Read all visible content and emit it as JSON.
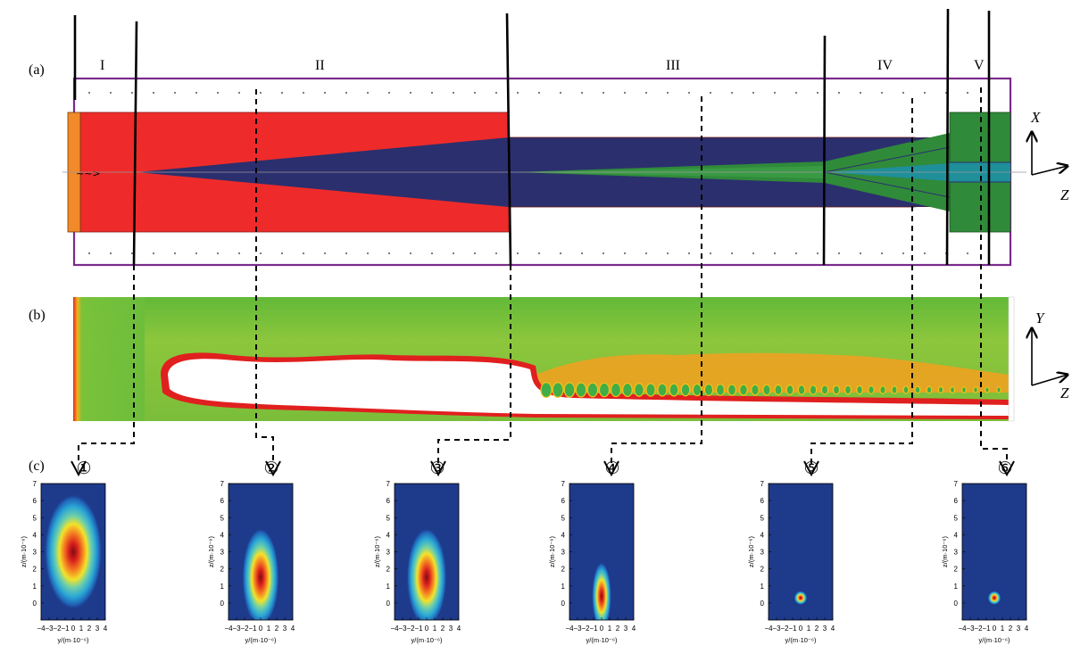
{
  "panel_labels": {
    "a": "(a)",
    "b": "(b)",
    "c": "(c)"
  },
  "regions": [
    "I",
    "II",
    "III",
    "IV",
    "V"
  ],
  "axes_a": {
    "vertical": "X",
    "horizontal": "Z"
  },
  "axes_b": {
    "vertical": "Y",
    "horizontal": "Z"
  },
  "colors": {
    "frame": "#7a2a8c",
    "outer_red": "#ee2b2a",
    "source": "#f08a2a",
    "core_navy": "#2b2f6e",
    "inner_green": "#2f8a3a",
    "inner_teal": "#1f8f9a"
  },
  "plots": [
    {
      "marker": "①",
      "xlabel": "y/(m·10⁻⁶)",
      "ylabel": "z/(m·10⁻⁶)",
      "spot": {
        "y": 0,
        "z": 3,
        "ry": 3.6,
        "rz": 3.4
      }
    },
    {
      "marker": "②",
      "xlabel": "y/(m·10⁻⁶)",
      "ylabel": "z/(m·10⁻⁶)",
      "spot": {
        "y": 0,
        "z": 1.5,
        "ry": 2.3,
        "rz": 2.9
      }
    },
    {
      "marker": "③",
      "xlabel": "y/(m·10⁻⁶)",
      "ylabel": "z/(m·10⁻⁶)",
      "spot": {
        "y": 0,
        "z": 1.5,
        "ry": 2.5,
        "rz": 2.9
      }
    },
    {
      "marker": "④",
      "xlabel": "y/(m·10⁻⁶)",
      "ylabel": "z/(m·10⁻⁶)",
      "spot": {
        "y": 0,
        "z": 0.4,
        "ry": 1.2,
        "rz": 2.0
      }
    },
    {
      "marker": "⑤",
      "xlabel": "y/(m·10⁻⁶)",
      "ylabel": "z/(m·10⁻⁶)",
      "spot": {
        "y": 0,
        "z": 0.3,
        "ry": 0.8,
        "rz": 0.4
      }
    },
    {
      "marker": "⑥",
      "xlabel": "y/(m·10⁻⁶)",
      "ylabel": "z/(m·10⁻⁶)",
      "spot": {
        "y": 0,
        "z": 0.3,
        "ry": 0.8,
        "rz": 0.4
      }
    }
  ],
  "plot_axes": {
    "x_ticks": [
      "−4",
      "−3",
      "−2",
      "−1",
      "0",
      "1",
      "2",
      "3",
      "4"
    ],
    "y_ticks": [
      "0",
      "1",
      "2",
      "3",
      "4",
      "5",
      "6",
      "7"
    ],
    "xlim": [
      -4,
      4
    ],
    "ylim": [
      -1,
      7
    ]
  }
}
